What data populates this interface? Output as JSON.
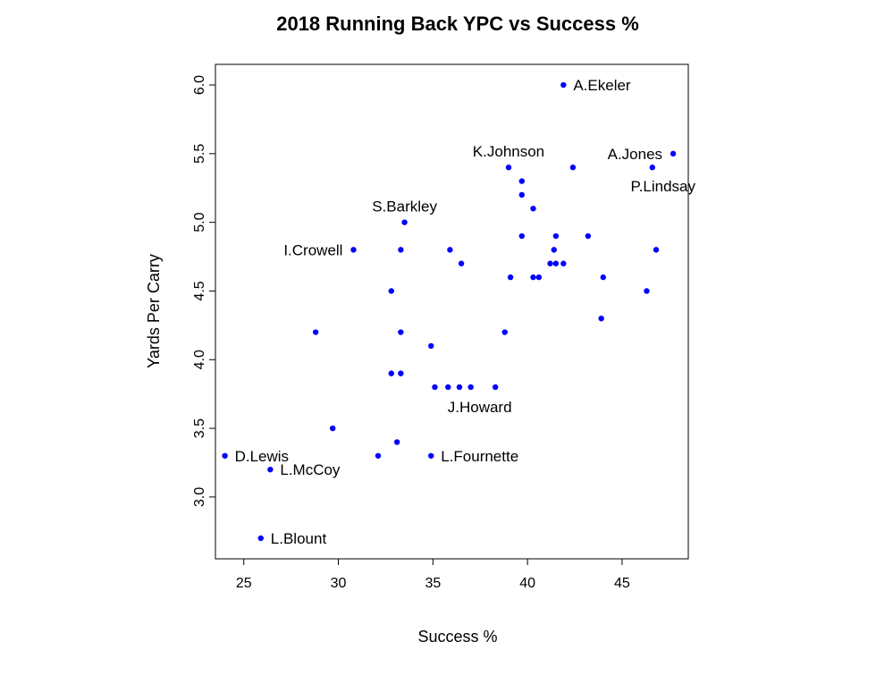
{
  "chart_data": {
    "type": "scatter",
    "title": "2018 Running Back YPC vs Success %",
    "xlabel": "Success %",
    "ylabel": "Yards Per Carry",
    "xlim": [
      23.5,
      48.5
    ],
    "ylim": [
      2.55,
      6.15
    ],
    "xticks": [
      25,
      30,
      35,
      40,
      45
    ],
    "yticks": [
      3.0,
      3.5,
      4.0,
      4.5,
      5.0,
      5.5,
      6.0
    ],
    "ytick_labels": [
      "3.0",
      "3.5",
      "4.0",
      "4.5",
      "5.0",
      "5.5",
      "6.0"
    ],
    "color": "#0000ff",
    "grid": false,
    "points": [
      {
        "x": 41.9,
        "y": 6.0,
        "label": "A.Ekeler",
        "label_pos": "right"
      },
      {
        "x": 47.7,
        "y": 5.5,
        "label": "A.Jones",
        "label_pos": "left"
      },
      {
        "x": 46.6,
        "y": 5.4,
        "label": "P.Lindsay",
        "label_pos": "below"
      },
      {
        "x": 39.0,
        "y": 5.4,
        "label": "K.Johnson",
        "label_pos": "above"
      },
      {
        "x": 42.4,
        "y": 5.4
      },
      {
        "x": 39.7,
        "y": 5.3
      },
      {
        "x": 39.7,
        "y": 5.2
      },
      {
        "x": 40.3,
        "y": 5.1
      },
      {
        "x": 33.5,
        "y": 5.0,
        "label": "S.Barkley",
        "label_pos": "above"
      },
      {
        "x": 39.7,
        "y": 4.9
      },
      {
        "x": 41.5,
        "y": 4.9
      },
      {
        "x": 43.2,
        "y": 4.9
      },
      {
        "x": 30.8,
        "y": 4.8,
        "label": "I.Crowell",
        "label_pos": "left"
      },
      {
        "x": 33.3,
        "y": 4.8
      },
      {
        "x": 35.9,
        "y": 4.8
      },
      {
        "x": 41.4,
        "y": 4.8
      },
      {
        "x": 46.8,
        "y": 4.8
      },
      {
        "x": 36.5,
        "y": 4.7
      },
      {
        "x": 41.2,
        "y": 4.7
      },
      {
        "x": 41.5,
        "y": 4.7
      },
      {
        "x": 41.9,
        "y": 4.7
      },
      {
        "x": 39.1,
        "y": 4.6
      },
      {
        "x": 40.3,
        "y": 4.6
      },
      {
        "x": 40.6,
        "y": 4.6
      },
      {
        "x": 44.0,
        "y": 4.6
      },
      {
        "x": 32.8,
        "y": 4.5
      },
      {
        "x": 46.3,
        "y": 4.5
      },
      {
        "x": 43.9,
        "y": 4.3
      },
      {
        "x": 28.8,
        "y": 4.2
      },
      {
        "x": 33.3,
        "y": 4.2
      },
      {
        "x": 38.8,
        "y": 4.2
      },
      {
        "x": 34.9,
        "y": 4.1
      },
      {
        "x": 32.8,
        "y": 3.9
      },
      {
        "x": 33.3,
        "y": 3.9
      },
      {
        "x": 35.1,
        "y": 3.8
      },
      {
        "x": 35.8,
        "y": 3.8
      },
      {
        "x": 36.4,
        "y": 3.8
      },
      {
        "x": 37.0,
        "y": 3.8,
        "label": "J.Howard",
        "label_pos": "below-right"
      },
      {
        "x": 38.3,
        "y": 3.8
      },
      {
        "x": 29.7,
        "y": 3.5
      },
      {
        "x": 33.1,
        "y": 3.4
      },
      {
        "x": 24.0,
        "y": 3.3,
        "label": "D.Lewis",
        "label_pos": "right"
      },
      {
        "x": 32.1,
        "y": 3.3
      },
      {
        "x": 34.9,
        "y": 3.3,
        "label": "L.Fournette",
        "label_pos": "right"
      },
      {
        "x": 26.4,
        "y": 3.2,
        "label": "L.McCoy",
        "label_pos": "right"
      },
      {
        "x": 25.9,
        "y": 2.7,
        "label": "L.Blount",
        "label_pos": "right"
      }
    ]
  }
}
